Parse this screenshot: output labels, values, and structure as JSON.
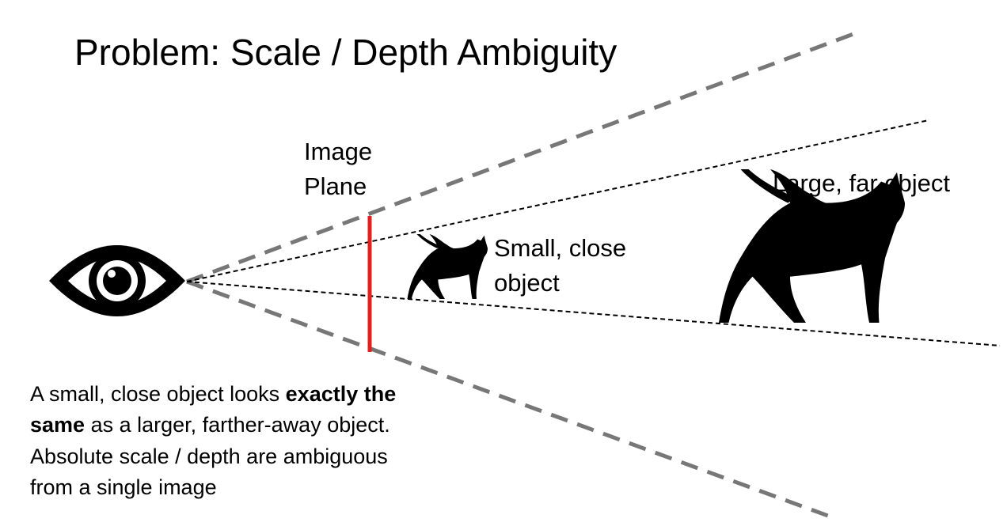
{
  "title": "Problem: Scale / Depth Ambiguity",
  "labels": {
    "image_plane": [
      "Image",
      "Plane"
    ],
    "small_object": [
      "Small, close",
      "object"
    ],
    "large_object": "Large, far object"
  },
  "caption": {
    "part1": "A small, close object looks ",
    "emphasis": "exactly the same",
    "part2": " as a larger, farther-away object. Absolute scale / depth are ambiguous from a single image"
  },
  "colors": {
    "frustum": "#777777",
    "ray": "#000000",
    "image_plane": "#e51f1f",
    "silhouette": "#000000"
  },
  "icons": {
    "eye": "eye-icon",
    "small_cat": "cat-silhouette-icon",
    "large_cat": "cat-silhouette-icon"
  }
}
